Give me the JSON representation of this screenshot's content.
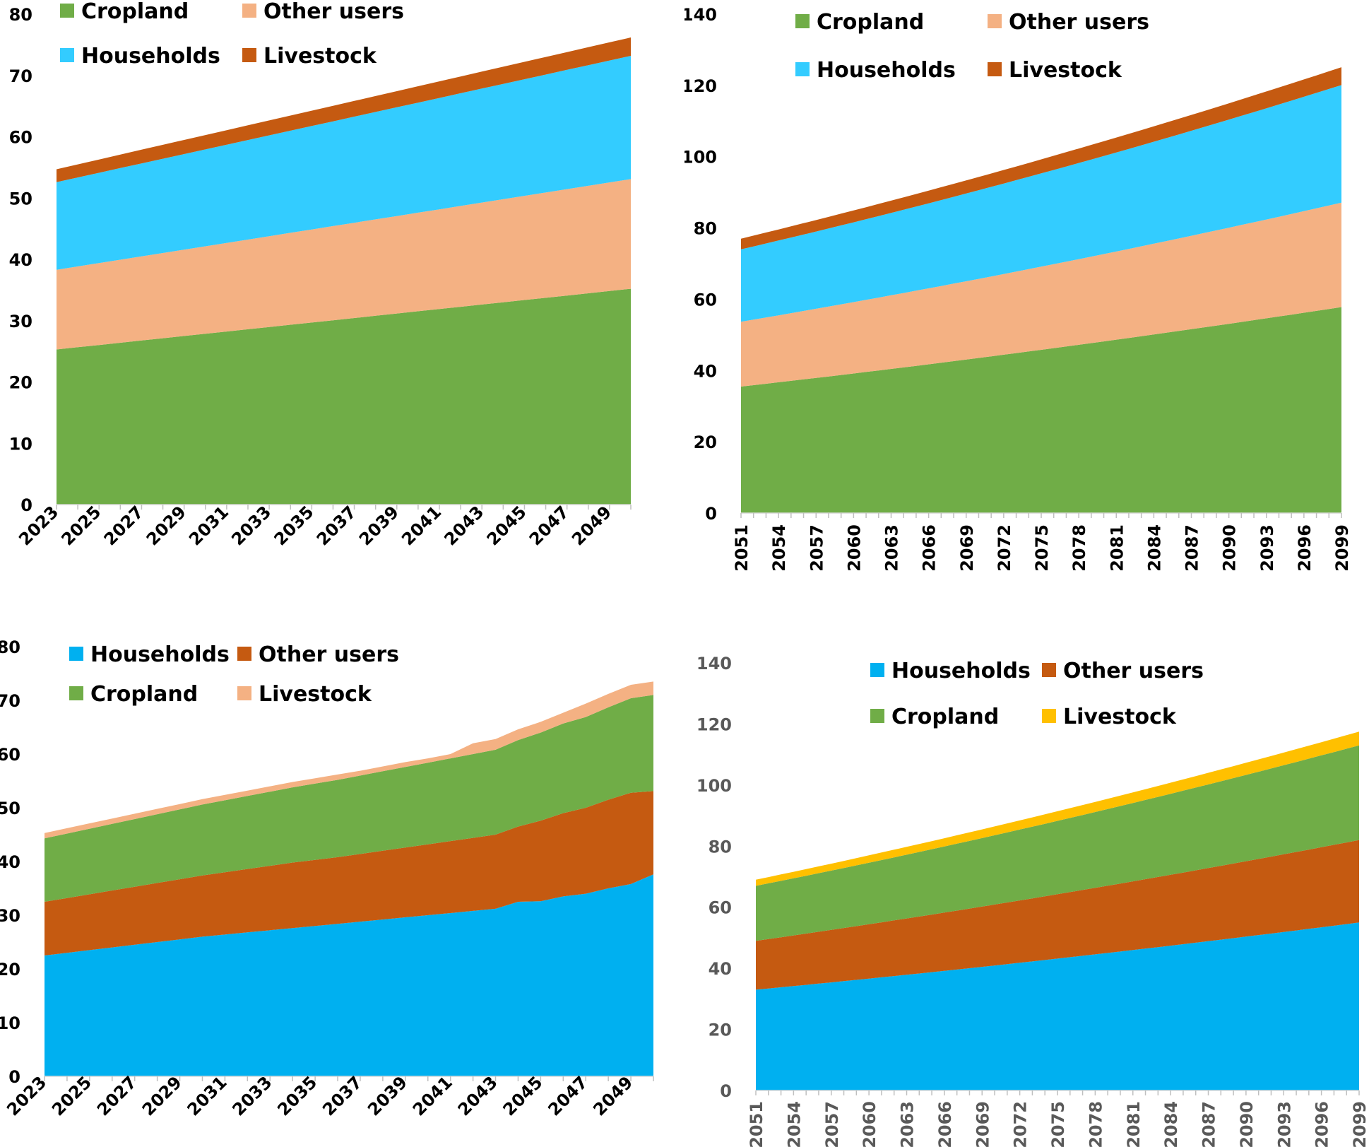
{
  "chart_data": [
    {
      "type": "area",
      "stacked": true,
      "x": [
        2023,
        2024,
        2025,
        2026,
        2027,
        2028,
        2029,
        2030,
        2031,
        2032,
        2033,
        2034,
        2035,
        2036,
        2037,
        2038,
        2039,
        2040,
        2041,
        2042,
        2043,
        2044,
        2045,
        2046,
        2047,
        2048,
        2049,
        2050
      ],
      "x_tick_labels": [
        "2023",
        "2025",
        "2027",
        "2029",
        "2031",
        "2033",
        "2035",
        "2037",
        "2039",
        "2041",
        "2043",
        "2045",
        "2047",
        "2049"
      ],
      "y_tick_labels": [
        "0",
        "10",
        "20",
        "30",
        "40",
        "50",
        "60",
        "70",
        "80"
      ],
      "ylim": [
        0,
        80
      ],
      "series": [
        {
          "name": "Cropland",
          "color": "#70AD47",
          "start": 25.3,
          "end": 35.2,
          "curve": 0
        },
        {
          "name": "Other users",
          "color": "#F4B183",
          "start": 13.0,
          "end": 17.9,
          "curve": 0
        },
        {
          "name": "Households",
          "color": "#33CCFF",
          "start": 14.3,
          "end": 20.1,
          "curve": 0
        },
        {
          "name": "Livestock",
          "color": "#C55A11",
          "start": 2.1,
          "end": 3.0,
          "curve": 0
        }
      ],
      "legend": [
        "Cropland",
        "Other users",
        "Households",
        "Livestock"
      ],
      "legend_position": "top-left"
    },
    {
      "type": "area",
      "stacked": true,
      "x": [
        2051,
        2052,
        2053,
        2054,
        2055,
        2056,
        2057,
        2058,
        2059,
        2060,
        2061,
        2062,
        2063,
        2064,
        2065,
        2066,
        2067,
        2068,
        2069,
        2070,
        2071,
        2072,
        2073,
        2074,
        2075,
        2076,
        2077,
        2078,
        2079,
        2080,
        2081,
        2082,
        2083,
        2084,
        2085,
        2086,
        2087,
        2088,
        2089,
        2090,
        2091,
        2092,
        2093,
        2094,
        2095,
        2096,
        2097,
        2098,
        2099
      ],
      "x_tick_labels": [
        "2051",
        "2054",
        "2057",
        "2060",
        "2063",
        "2066",
        "2069",
        "2072",
        "2075",
        "2078",
        "2081",
        "2084",
        "2087",
        "2090",
        "2093",
        "2096",
        "2099"
      ],
      "y_tick_labels": [
        "0",
        "20",
        "40",
        "60",
        "80",
        "100",
        "120",
        "140"
      ],
      "ylim": [
        0,
        140
      ],
      "series": [
        {
          "name": "Cropland",
          "color": "#70AD47",
          "start": 35.5,
          "end": 57.8,
          "curve": 1
        },
        {
          "name": "Other users",
          "color": "#F4B183",
          "start": 18.2,
          "end": 29.3,
          "curve": 1
        },
        {
          "name": "Households",
          "color": "#33CCFF",
          "start": 20.3,
          "end": 33.0,
          "curve": 1
        },
        {
          "name": "Livestock",
          "color": "#C55A11",
          "start": 3.0,
          "end": 5.0,
          "curve": 1
        }
      ],
      "legend": [
        "Cropland",
        "Other users",
        "Households",
        "Livestock"
      ],
      "legend_position": "top-center"
    },
    {
      "type": "area",
      "stacked": true,
      "x": [
        2023,
        2024,
        2025,
        2026,
        2027,
        2028,
        2029,
        2030,
        2031,
        2032,
        2033,
        2034,
        2035,
        2036,
        2037,
        2038,
        2039,
        2040,
        2041,
        2042,
        2043,
        2044,
        2045,
        2046,
        2047,
        2048,
        2049,
        2050
      ],
      "x_tick_labels": [
        "2023",
        "2025",
        "2027",
        "2029",
        "2031",
        "2033",
        "2035",
        "2037",
        "2039",
        "2041",
        "2043",
        "2045",
        "2047",
        "2049"
      ],
      "y_tick_labels": [
        "0",
        "10",
        "20",
        "30",
        "40",
        "50",
        "60",
        "70",
        "80"
      ],
      "ylim": [
        0,
        80
      ],
      "series": [
        {
          "name": "Households",
          "color": "#00B0F0",
          "values": [
            22.5,
            23.0,
            23.5,
            24.0,
            24.5,
            25.0,
            25.5,
            26.0,
            26.4,
            26.8,
            27.2,
            27.6,
            28.0,
            28.4,
            28.8,
            29.2,
            29.6,
            30.0,
            30.4,
            30.8,
            31.2,
            32.5,
            32.6,
            33.5,
            34.0,
            35.0,
            35.8,
            37.6
          ]
        },
        {
          "name": "Other users",
          "color": "#C55A11",
          "values": [
            10.0,
            10.2,
            10.4,
            10.6,
            10.8,
            11.0,
            11.2,
            11.4,
            11.6,
            11.8,
            12.0,
            12.2,
            12.3,
            12.4,
            12.6,
            12.8,
            13.0,
            13.2,
            13.4,
            13.6,
            13.8,
            14.0,
            15.0,
            15.5,
            16.0,
            16.5,
            17.0,
            15.5
          ]
        },
        {
          "name": "Cropland",
          "color": "#70AD47",
          "values": [
            11.8,
            12.0,
            12.2,
            12.4,
            12.6,
            12.8,
            13.0,
            13.2,
            13.4,
            13.6,
            13.8,
            14.0,
            14.2,
            14.4,
            14.6,
            14.8,
            15.0,
            15.2,
            15.4,
            15.6,
            15.8,
            16.1,
            16.4,
            16.7,
            16.9,
            17.2,
            17.6,
            17.9
          ]
        },
        {
          "name": "Livestock",
          "color": "#F4B183",
          "values": [
            1.0,
            1.0,
            1.0,
            1.0,
            1.0,
            1.0,
            1.0,
            1.0,
            1.0,
            1.0,
            1.0,
            1.0,
            1.0,
            1.0,
            0.9,
            0.9,
            0.9,
            0.8,
            0.8,
            2.0,
            2.0,
            2.0,
            2.0,
            2.0,
            2.5,
            2.5,
            2.5,
            2.5
          ]
        }
      ],
      "legend": [
        "Households",
        "Other users",
        "Cropland",
        "Livestock"
      ],
      "legend_position": "top-left"
    },
    {
      "type": "area",
      "stacked": true,
      "x": [
        2051,
        2052,
        2053,
        2054,
        2055,
        2056,
        2057,
        2058,
        2059,
        2060,
        2061,
        2062,
        2063,
        2064,
        2065,
        2066,
        2067,
        2068,
        2069,
        2070,
        2071,
        2072,
        2073,
        2074,
        2075,
        2076,
        2077,
        2078,
        2079,
        2080,
        2081,
        2082,
        2083,
        2084,
        2085,
        2086,
        2087,
        2088,
        2089,
        2090,
        2091,
        2092,
        2093,
        2094,
        2095,
        2096,
        2097,
        2098,
        2099
      ],
      "x_tick_labels": [
        "2051",
        "2054",
        "2057",
        "2060",
        "2063",
        "2066",
        "2069",
        "2072",
        "2075",
        "2078",
        "2081",
        "2084",
        "2087",
        "2090",
        "2093",
        "2096",
        "2099"
      ],
      "y_tick_labels": [
        "0",
        "20",
        "40",
        "60",
        "80",
        "100",
        "120",
        "140"
      ],
      "ylim": [
        0,
        140
      ],
      "series": [
        {
          "name": "Households",
          "color": "#00B0F0",
          "start": 33.0,
          "end": 55.0,
          "curve": 1
        },
        {
          "name": "Other users",
          "color": "#C55A11",
          "start": 16.0,
          "end": 27.0,
          "curve": 1
        },
        {
          "name": "Cropland",
          "color": "#70AD47",
          "start": 18.0,
          "end": 31.0,
          "curve": 1
        },
        {
          "name": "Livestock",
          "color": "#FFC000",
          "start": 2.0,
          "end": 4.5,
          "curve": 1
        }
      ],
      "legend": [
        "Households",
        "Other users",
        "Cropland",
        "Livestock"
      ],
      "legend_position": "top-center"
    }
  ]
}
